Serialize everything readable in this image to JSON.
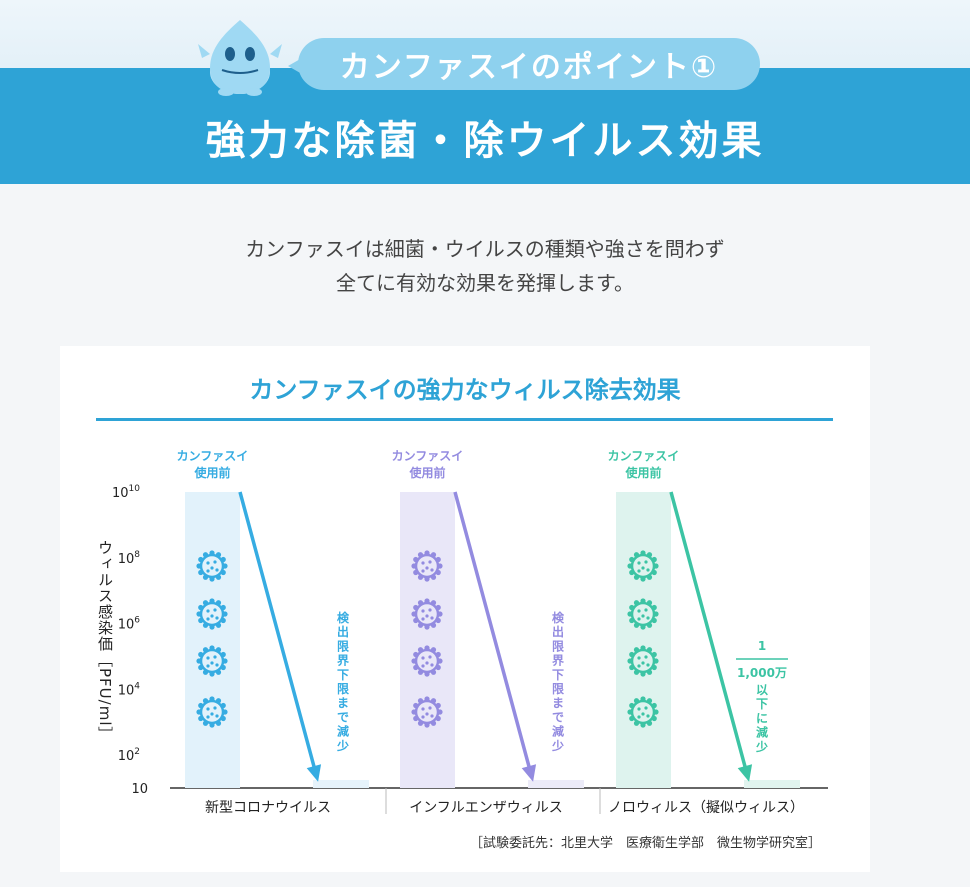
{
  "header": {
    "point_label": "カンファスイのポイント①",
    "title": "強力な除菌・除ウイルス効果"
  },
  "lead": {
    "line1": "カンファスイは細菌・ウイルスの種類や強さを問わず",
    "line2": "全てに有効な効果を発揮します。"
  },
  "colors": {
    "banner": "#2ea3d6",
    "covid": "#36ace2",
    "flu": "#938be0",
    "noro": "#3cc4a4"
  },
  "source_note": "［試験委託先：北里大学　医療衛生学部　微生物学研究室］",
  "chart_data": {
    "type": "bar",
    "title": "カンファスイの強力なウィルス除去効果",
    "ylabel": "ウィルス感染価［PFU/ml］",
    "y_scale": "log",
    "ylim": [
      10,
      10000000000
    ],
    "y_ticks": [
      {
        "base": "10",
        "exp": "10"
      },
      {
        "base": "10",
        "exp": "8"
      },
      {
        "base": "10",
        "exp": "6"
      },
      {
        "base": "10",
        "exp": "4"
      },
      {
        "base": "10",
        "exp": "2"
      },
      {
        "base": "10",
        "exp": ""
      }
    ],
    "groups": [
      {
        "category": "新型コロナウイルス",
        "color": "#36ace2",
        "before_label": "カンファスイ\n使用前",
        "before_value": 10000000000,
        "after_value": 10,
        "after_label_lines": [
          "検",
          "出",
          "限",
          "界",
          "下",
          "限",
          "ま",
          "で",
          "減",
          "少"
        ]
      },
      {
        "category": "インフルエンザウィルス",
        "color": "#938be0",
        "before_label": "カンファスイ\n使用前",
        "before_value": 10000000000,
        "after_value": 10,
        "after_label_lines": [
          "検",
          "出",
          "限",
          "界",
          "下",
          "限",
          "ま",
          "で",
          "減",
          "少"
        ]
      },
      {
        "category": "ノロウィルス（擬似ウィルス）",
        "color": "#3cc4a4",
        "before_label": "カンファスイ\n使用前",
        "before_value": 10000000000,
        "after_value": 10,
        "after_fraction": {
          "num": "1",
          "den": "1,000万"
        },
        "after_label_lines": [
          "以",
          "下",
          "に",
          "減",
          "少"
        ]
      }
    ]
  }
}
